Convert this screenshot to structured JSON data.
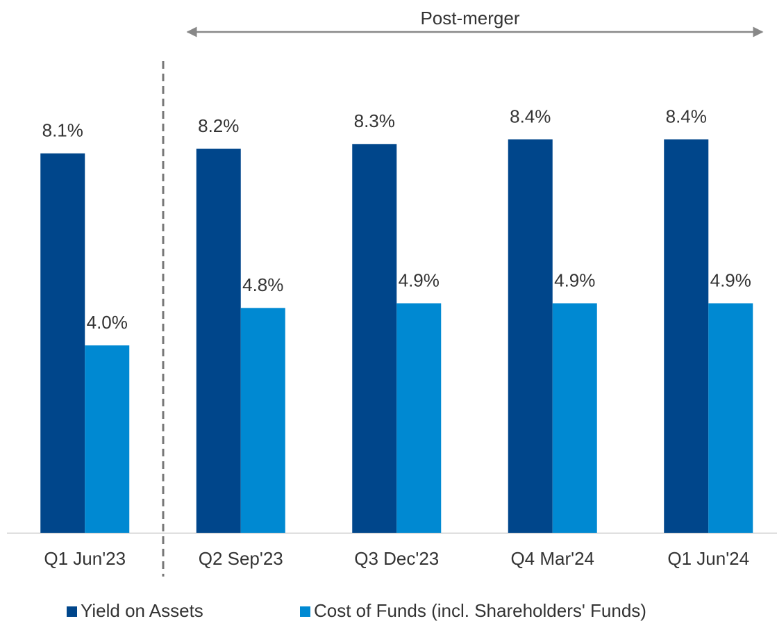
{
  "chart_data": {
    "type": "bar",
    "annotation": "Post-merger",
    "categories": [
      "Q1 Jun'23",
      "Q2 Sep'23",
      "Q3 Dec'23",
      "Q4 Mar'24",
      "Q1 Jun'24"
    ],
    "series": [
      {
        "name": "Yield on Assets",
        "color": "#00468b",
        "values": [
          8.1,
          8.2,
          8.3,
          8.4,
          8.4
        ],
        "value_labels": [
          "8.1%",
          "8.2%",
          "8.3%",
          "8.4%",
          "8.4%"
        ]
      },
      {
        "name": "Cost of Funds (incl. Shareholders' Funds)",
        "color": "#0089d2",
        "values": [
          4.0,
          4.8,
          4.9,
          4.9,
          4.9
        ],
        "value_labels": [
          "4.0%",
          "4.8%",
          "4.9%",
          "4.9%",
          "4.9%"
        ]
      }
    ],
    "ylim": [
      0,
      11.3
    ]
  }
}
